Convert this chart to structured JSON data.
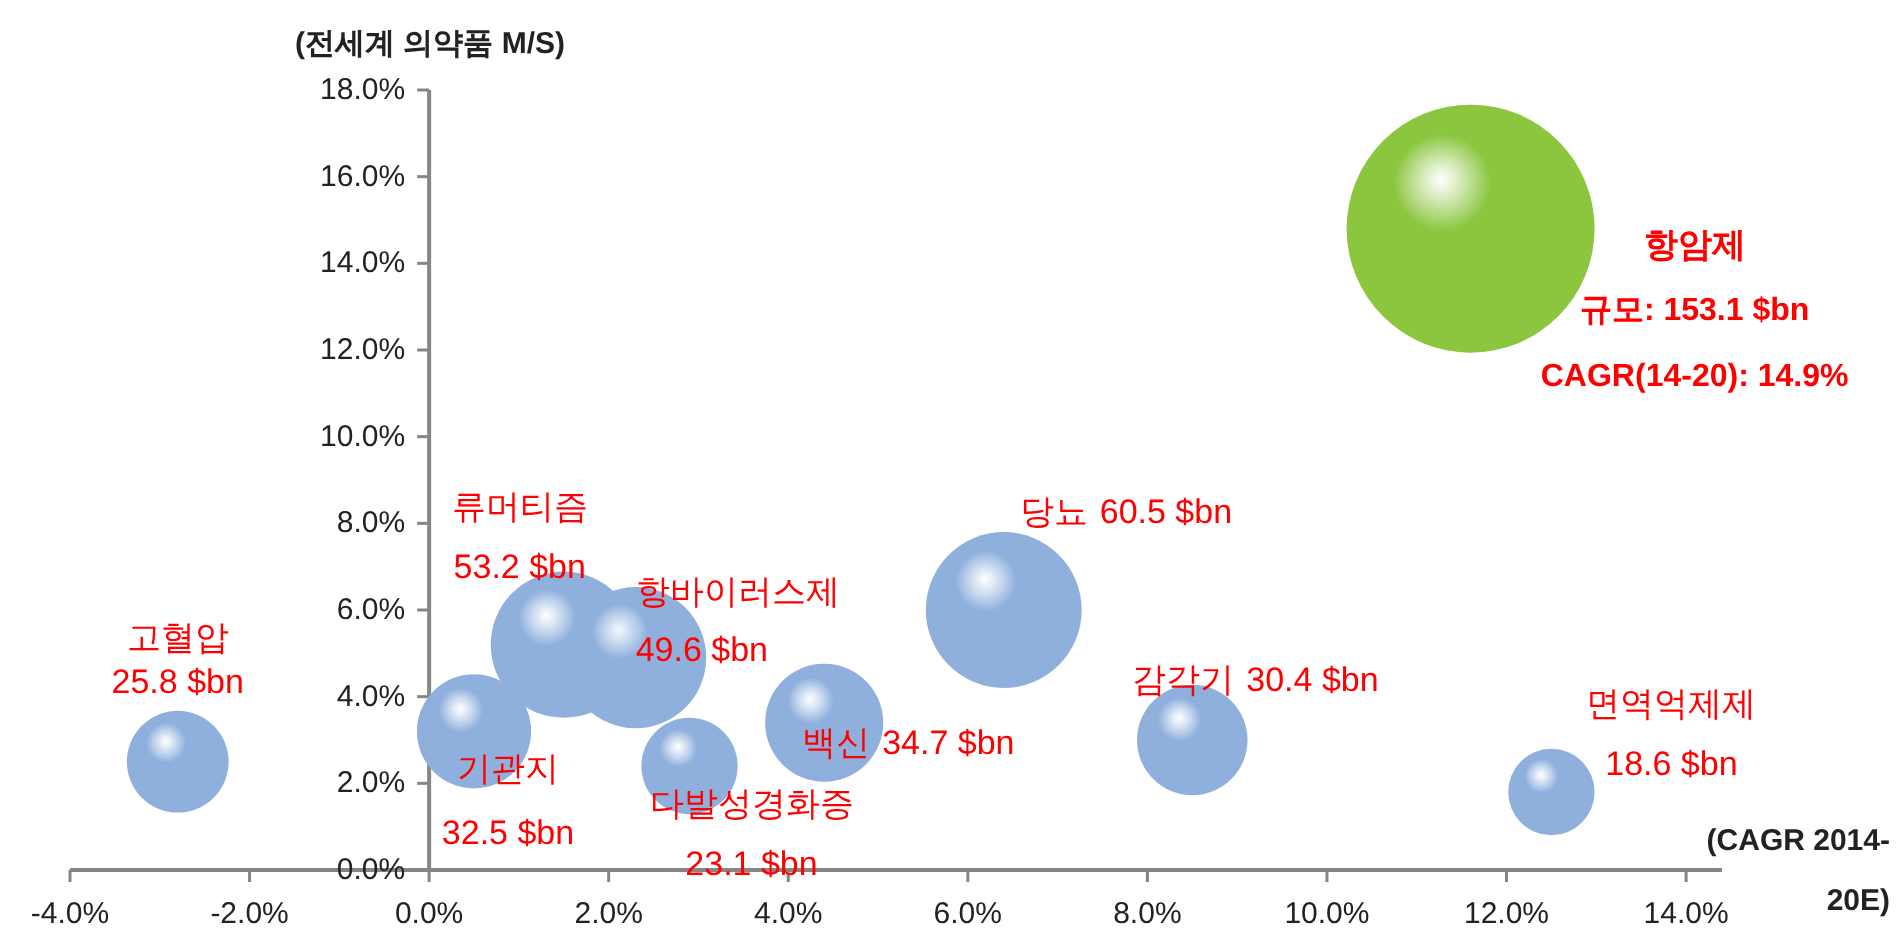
{
  "chart_data": {
    "type": "bubble",
    "ylabel": "(전세계 의약품 M/S)",
    "xlabel": "(CAGR 2014-20E)",
    "x": [
      -2.8,
      0.5,
      1.5,
      2.3,
      2.9,
      4.4,
      6.4,
      8.5,
      12.5,
      11.6
    ],
    "values": [
      2.5,
      3.2,
      5.2,
      4.9,
      2.4,
      3.4,
      6.0,
      3.0,
      1.8,
      14.8
    ],
    "sizes": [
      25.8,
      32.5,
      53.2,
      49.6,
      23.1,
      34.7,
      60.5,
      30.4,
      18.6,
      153.1
    ],
    "colors": [
      "#8fb0dd",
      "#8fb0dd",
      "#8fb0dd",
      "#8fb0dd",
      "#8fb0dd",
      "#8fb0dd",
      "#8fb0dd",
      "#8fb0dd",
      "#8fb0dd",
      "#8cc63f"
    ],
    "value_labels": [
      "25.8 $bn",
      "32.5 $bn",
      "53.2 $bn",
      "49.6 $bn",
      "23.1 $bn",
      "34.7 $bn",
      "60.5 $bn",
      "30.4 $bn",
      "18.6 $bn",
      "규모: 153.1 $bn"
    ],
    "annotations": [
      "고혈압",
      {
        "text": "기관지",
        "x": 0.5,
        "y": 3.2
      },
      "류머티즘",
      {
        "text": "항바이러스제",
        "x": 2.3,
        "y": 4.9
      },
      {
        "text": "다발성경화증",
        "x": 2.9,
        "y": 2.4
      },
      {
        "text": "백신",
        "x": 4.4,
        "y": 3.4
      },
      {
        "text": "당뇨",
        "x": 6.4,
        "y": 6.0
      },
      {
        "text": "감각기",
        "x": 8.5,
        "y": 3.0
      },
      {
        "text": "면역억제제",
        "x": 12.5,
        "y": 1.8
      },
      "항암제",
      "CAGR(14-20): 14.9%"
    ],
    "xlim": [
      -4,
      14.4
    ],
    "ylim": [
      0,
      18
    ],
    "xticks": [
      {
        "value": -4,
        "label": "-4.0%"
      },
      {
        "value": -2,
        "label": "-2.0%"
      },
      {
        "value": 0,
        "label": "0.0%"
      },
      {
        "value": 2,
        "label": "2.0%"
      },
      {
        "value": 4,
        "label": "4.0%"
      },
      {
        "value": 6,
        "label": "6.0%"
      },
      {
        "value": 8,
        "label": "8.0%"
      },
      {
        "value": 10,
        "label": "10.0%"
      },
      {
        "value": 12,
        "label": "12.0%"
      },
      {
        "value": 14,
        "label": "14.0%"
      }
    ],
    "yticks": [
      {
        "value": 0,
        "label": "0.0%"
      },
      {
        "value": 2,
        "label": "2.0%"
      },
      {
        "value": 4,
        "label": "4.0%"
      },
      {
        "value": 6,
        "label": "6.0%"
      },
      {
        "value": 8,
        "label": "8.0%"
      },
      {
        "value": 10,
        "label": "10.0%"
      },
      {
        "value": 12,
        "label": "12.0%"
      },
      {
        "value": 14,
        "label": "14.0%"
      },
      {
        "value": 16,
        "label": "16.0%"
      },
      {
        "value": 18,
        "label": "18.0%"
      }
    ],
    "grid": false
  }
}
